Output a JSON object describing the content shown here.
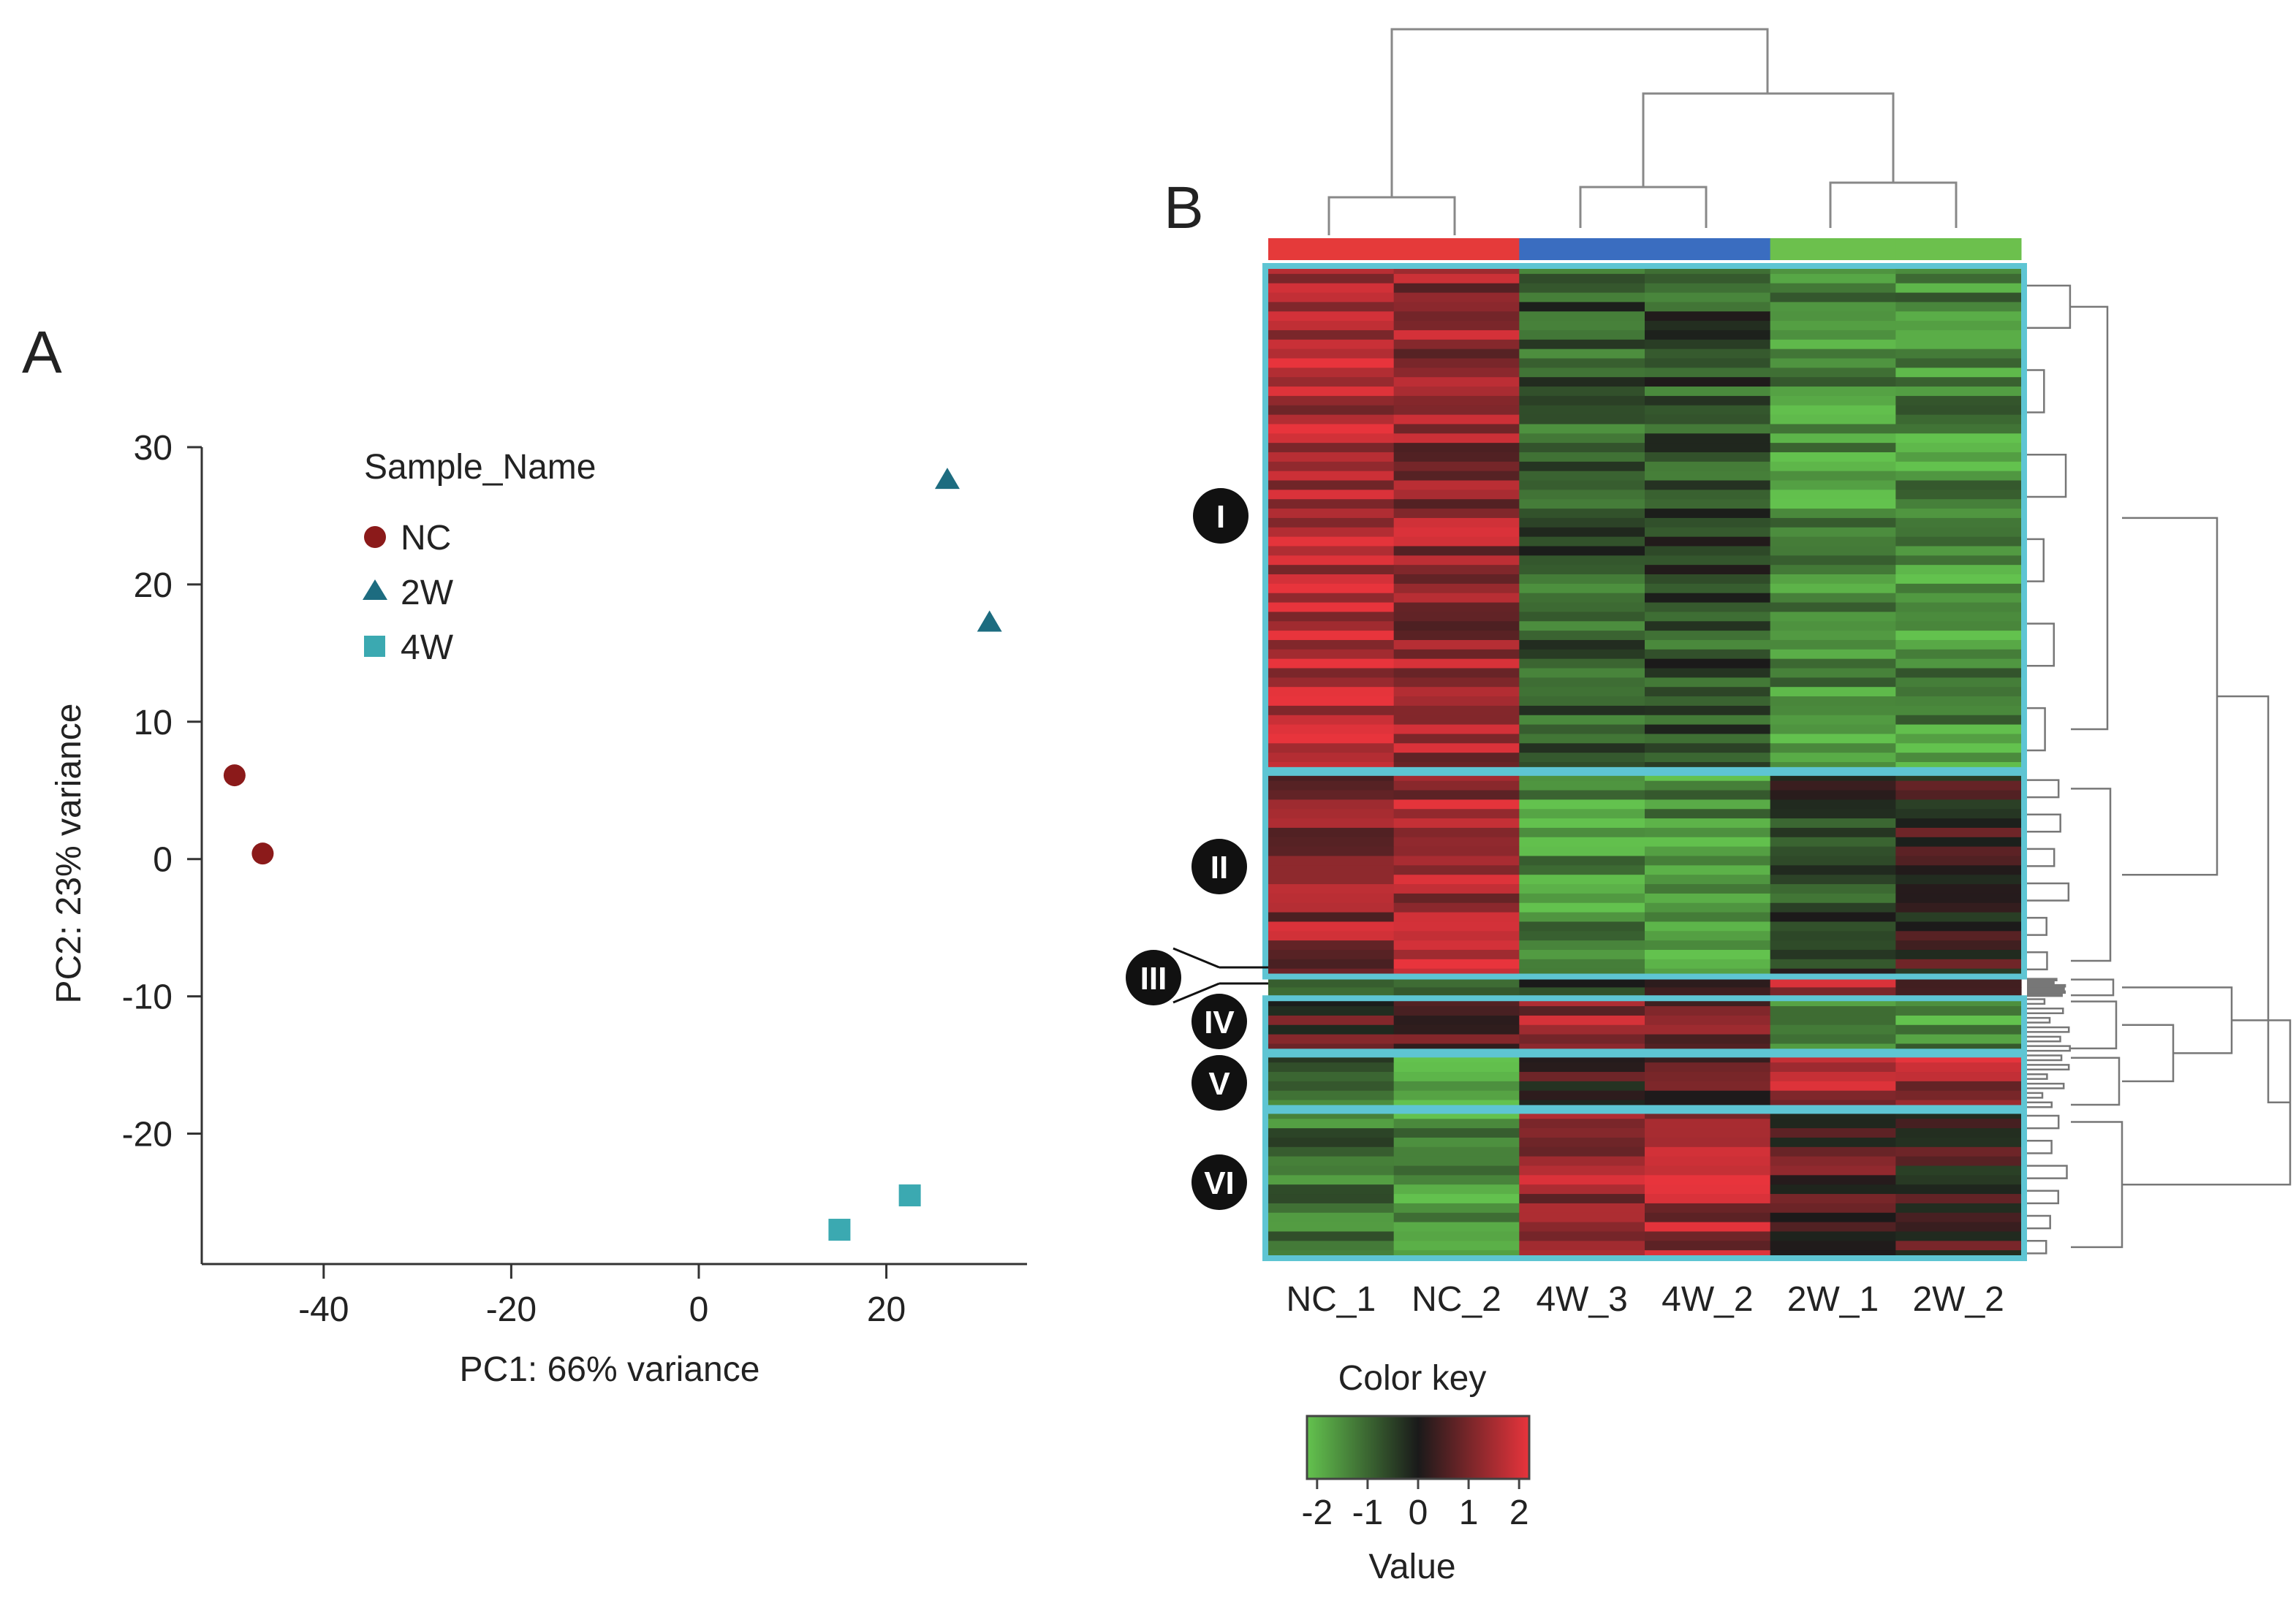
{
  "panels": {
    "a": "A",
    "b": "B"
  },
  "chart_data": [
    {
      "type": "scatter",
      "title": "",
      "xlabel": "PC1: 66% variance",
      "ylabel": "PC2: 23% variance",
      "xlim": [
        -53,
        35
      ],
      "ylim": [
        -29.5,
        30
      ],
      "xticks": [
        -40,
        -20,
        0,
        20
      ],
      "yticks": [
        30,
        20,
        10,
        0,
        -10,
        -20
      ],
      "legend": {
        "title": "Sample_Name",
        "position": "top-left"
      },
      "series": [
        {
          "name": "NC",
          "marker": "circle",
          "color": "#8b1a1a",
          "points": [
            [
              -49.5,
              6.1
            ],
            [
              -46.5,
              0.4
            ]
          ]
        },
        {
          "name": "2W",
          "marker": "triangle",
          "color": "#1d6c80",
          "points": [
            [
              26.5,
              27.6
            ],
            [
              31,
              17.2
            ]
          ]
        },
        {
          "name": "4W",
          "marker": "square",
          "color": "#3ba9b1",
          "points": [
            [
              15,
              -27
            ],
            [
              22.5,
              -24.5
            ]
          ]
        }
      ]
    },
    {
      "type": "heatmap",
      "columns": [
        "NC_1",
        "NC_2",
        "4W_3",
        "4W_2",
        "2W_1",
        "2W_2"
      ],
      "column_groups": [
        "#e53a3a",
        "#e53a3a",
        "#3a6dc0",
        "#3a6dc0",
        "#6cc04d",
        "#6cc04d"
      ],
      "clusters": [
        {
          "label": "I",
          "rows": 54,
          "levels": [
            1.7,
            1.3,
            -0.8,
            -0.7,
            -1.5,
            -1.5
          ]
        },
        {
          "label": "II",
          "rows": 22,
          "levels": [
            1.3,
            1.5,
            -1.5,
            -1.6,
            -0.4,
            0.2
          ]
        },
        {
          "label": "III",
          "rows": 2,
          "levels": [
            -0.3,
            -0.3,
            -0.4,
            -0.4,
            1.8,
            1.2
          ]
        },
        {
          "label": "IV",
          "rows": 6,
          "levels": [
            0.4,
            0.5,
            1.4,
            1.0,
            -1.4,
            -1.5
          ]
        },
        {
          "label": "V",
          "rows": 6,
          "levels": [
            -1.1,
            -1.7,
            0.4,
            0.6,
            1.3,
            1.4
          ]
        },
        {
          "label": "VI",
          "rows": 16,
          "levels": [
            -1.1,
            -1.6,
            1.3,
            1.5,
            0.5,
            0.3
          ]
        }
      ],
      "color_key": {
        "title": "Color key",
        "label": "Value",
        "ticks": [
          "-2",
          "-1",
          "0",
          "1",
          "2"
        ],
        "range": [
          -2.2,
          2.2
        ],
        "low": "#63c24e",
        "mid": "#1a1a1a",
        "high": "#e8343c"
      },
      "outline_color": "#5ec5d3"
    }
  ]
}
